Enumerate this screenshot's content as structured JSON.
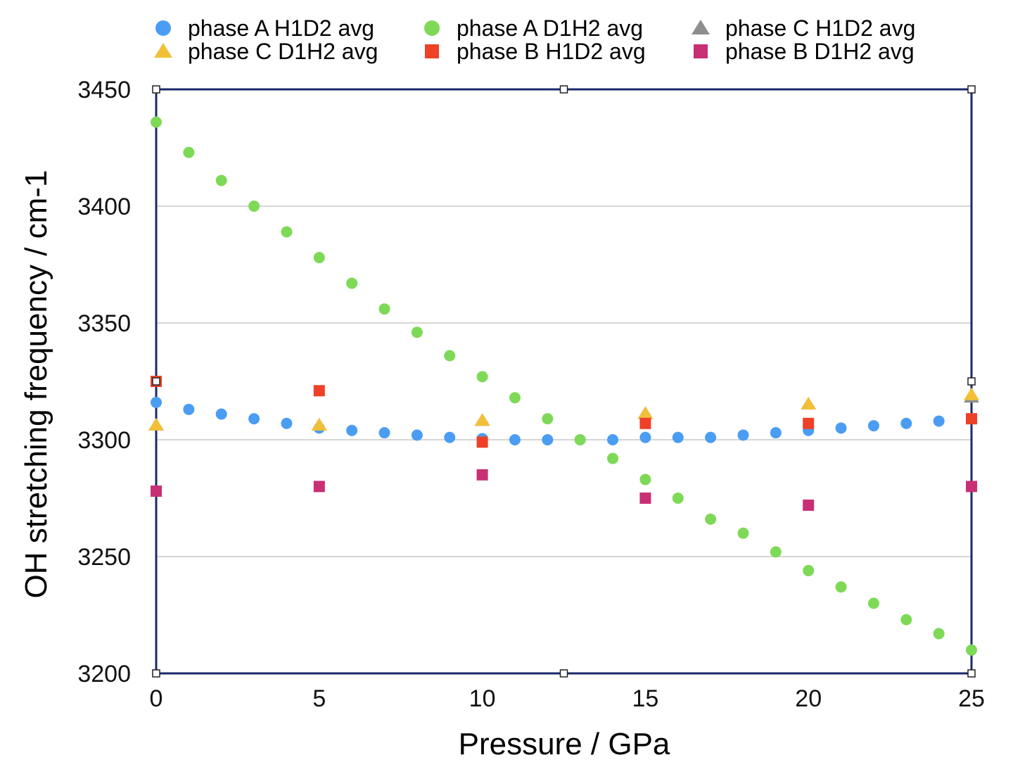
{
  "chart_data": {
    "type": "scatter",
    "title": "",
    "xlabel": "Pressure / GPa",
    "ylabel": "OH stretching frequency / cm-1",
    "xlim": [
      0,
      25
    ],
    "ylim": [
      3200,
      3450
    ],
    "xticks": [
      "0",
      "5",
      "10",
      "15",
      "20",
      "25"
    ],
    "yticks": [
      "3200",
      "3250",
      "3300",
      "3350",
      "3400",
      "3450"
    ],
    "grid": "horizontal",
    "legend_position": "top",
    "series": [
      {
        "name": "phase A H1D2 avg",
        "marker": "circle",
        "color": "#4A9DF2",
        "x": [
          0,
          1,
          2,
          3,
          4,
          5,
          6,
          7,
          8,
          9,
          10,
          11,
          12,
          13,
          14,
          15,
          16,
          17,
          18,
          19,
          20,
          21,
          22,
          23,
          24,
          25
        ],
        "y": [
          3316,
          3313,
          3311,
          3309,
          3307,
          3305,
          3304,
          3303,
          3302,
          3301,
          3300.5,
          3300,
          3300,
          3300,
          3300,
          3301,
          3301,
          3301,
          3302,
          3303,
          3304,
          3305,
          3306,
          3307,
          3308,
          3309
        ]
      },
      {
        "name": "phase A D1H2 avg",
        "marker": "circle",
        "color": "#7ED957",
        "x": [
          0,
          1,
          2,
          3,
          4,
          5,
          6,
          7,
          8,
          9,
          10,
          11,
          12,
          13,
          14,
          15,
          16,
          17,
          18,
          19,
          20,
          21,
          22,
          23,
          24,
          25
        ],
        "y": [
          3436,
          3423,
          3411,
          3400,
          3389,
          3378,
          3367,
          3356,
          3346,
          3336,
          3327,
          3318,
          3309,
          3300,
          3292,
          3283,
          3275,
          3266,
          3260,
          3252,
          3244,
          3237,
          3230,
          3223,
          3217,
          3210
        ]
      },
      {
        "name": "phase C H1D2 avg",
        "marker": "triangle",
        "color": "#8E8E8E",
        "x": [
          0,
          5,
          10,
          15,
          20,
          25
        ],
        "y": [
          3306,
          3306,
          3308,
          3311,
          3315,
          3318
        ]
      },
      {
        "name": "phase C D1H2 avg",
        "marker": "triangle",
        "color": "#F2C038",
        "x": [
          0,
          5,
          10,
          15,
          20,
          25
        ],
        "y": [
          3306,
          3306,
          3308,
          3311,
          3315,
          3319
        ]
      },
      {
        "name": "phase B H1D2 avg",
        "marker": "square",
        "color": "#EE4128",
        "x": [
          0,
          5,
          10,
          15,
          20,
          25
        ],
        "y": [
          3325,
          3321,
          3299,
          3307,
          3307,
          3309
        ]
      },
      {
        "name": "phase B D1H2 avg",
        "marker": "square",
        "color": "#C92F75",
        "x": [
          0,
          5,
          10,
          15,
          20,
          25
        ],
        "y": [
          3278,
          3280,
          3285,
          3275,
          3272,
          3280
        ]
      }
    ]
  }
}
